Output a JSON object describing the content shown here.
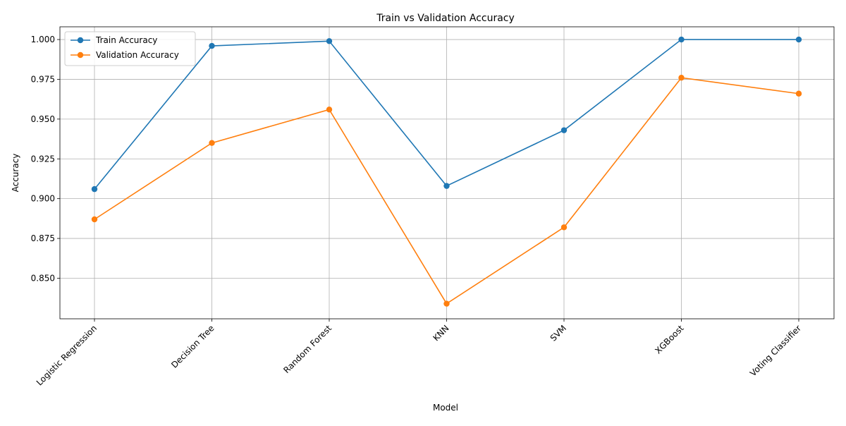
{
  "chart_data": {
    "type": "line",
    "title": "Train vs Validation Accuracy",
    "xlabel": "Model",
    "ylabel": "Accuracy",
    "categories": [
      "Logistic Regression",
      "Decision Tree",
      "Random Forest",
      "KNN",
      "SVM",
      "XGBoost",
      "Voting Classifier"
    ],
    "series": [
      {
        "name": "Train Accuracy",
        "color": "#1f77b4",
        "values": [
          0.906,
          0.996,
          0.999,
          0.908,
          0.943,
          1.0,
          1.0
        ]
      },
      {
        "name": "Validation Accuracy",
        "color": "#ff7f0e",
        "values": [
          0.887,
          0.935,
          0.956,
          0.834,
          0.882,
          0.976,
          0.966
        ]
      }
    ],
    "ylim": [
      0.8245,
      1.008
    ],
    "yticks": [
      0.85,
      0.875,
      0.9,
      0.925,
      0.95,
      0.975,
      1.0
    ],
    "ytick_labels": [
      "0.850",
      "0.875",
      "0.900",
      "0.925",
      "0.950",
      "0.975",
      "1.000"
    ],
    "grid": true,
    "legend_position": "top-left",
    "markers": "circle"
  }
}
